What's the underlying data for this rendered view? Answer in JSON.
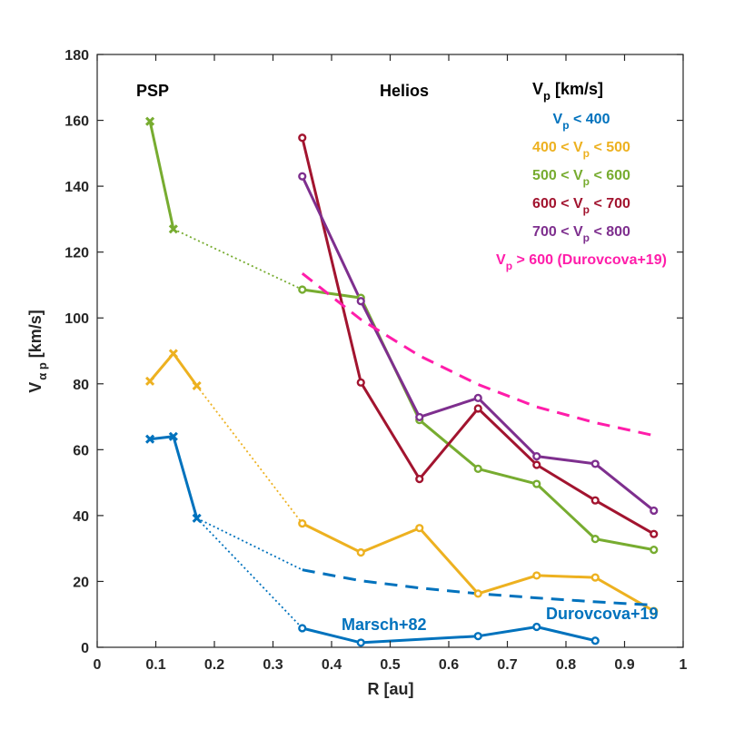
{
  "chart_data": {
    "type": "line",
    "title": "",
    "xlabel": "R [au]",
    "ylabel": "V_{αp} [km/s]",
    "xlim": [
      0,
      1
    ],
    "ylim": [
      0,
      180
    ],
    "xticks": [
      0,
      0.1,
      0.2,
      0.3,
      0.4,
      0.5,
      0.6,
      0.7,
      0.8,
      0.9,
      1
    ],
    "xtick_labels": [
      "0",
      "0.1",
      "0.2",
      "0.3",
      "0.4",
      "0.5",
      "0.6",
      "0.7",
      "0.8",
      "0.9",
      "1"
    ],
    "yticks": [
      0,
      20,
      40,
      60,
      80,
      100,
      120,
      140,
      160,
      180
    ],
    "ytick_labels": [
      "0",
      "20",
      "40",
      "60",
      "80",
      "100",
      "120",
      "140",
      "160",
      "180"
    ],
    "grid": false,
    "legend_title": "V_p [km/s]",
    "annotations": {
      "psp": "PSP",
      "helios": "Helios",
      "marsch": "Marsch+82",
      "durovcova": "Durovcova+19"
    },
    "series": [
      {
        "name": "V_p < 400",
        "legend": [
          "V",
          "p",
          " < 400"
        ],
        "color": "#0072BD",
        "psp": {
          "x": [
            0.09,
            0.13,
            0.17
          ],
          "y": [
            63.2,
            64.0,
            39.2
          ]
        },
        "helios": {
          "x": [
            0.35,
            0.45,
            0.65,
            0.75,
            0.85
          ],
          "y": [
            5.8,
            1.4,
            3.4,
            6.2,
            2.0
          ]
        },
        "link": {
          "from": [
            0.17,
            39.2
          ],
          "to": [
            0.35,
            5.8
          ]
        }
      },
      {
        "name": "400 < V_p < 500",
        "legend": [
          "400 < V",
          "p",
          " < 500"
        ],
        "color": "#EDB120",
        "psp": {
          "x": [
            0.09,
            0.13,
            0.17
          ],
          "y": [
            80.8,
            89.2,
            79.4
          ]
        },
        "helios": {
          "x": [
            0.35,
            0.45,
            0.55,
            0.65,
            0.75,
            0.85,
            0.95
          ],
          "y": [
            37.6,
            28.8,
            36.2,
            16.3,
            21.8,
            21.2,
            11.0
          ]
        },
        "link": {
          "from": [
            0.17,
            79.4
          ],
          "to": [
            0.35,
            37.6
          ]
        }
      },
      {
        "name": "500 < V_p < 600",
        "legend": [
          "500 < V",
          "p",
          " < 600"
        ],
        "color": "#77AC30",
        "psp": {
          "x": [
            0.09,
            0.13
          ],
          "y": [
            159.7,
            127.0
          ]
        },
        "helios": {
          "x": [
            0.35,
            0.45,
            0.55,
            0.65,
            0.75,
            0.85,
            0.95
          ],
          "y": [
            108.6,
            106.1,
            69.0,
            54.2,
            49.6,
            32.9,
            29.6
          ]
        },
        "link": {
          "from": [
            0.13,
            127.0
          ],
          "to": [
            0.35,
            108.6
          ]
        }
      },
      {
        "name": "600 < V_p < 700",
        "legend": [
          "600 < V",
          "p",
          " < 700"
        ],
        "color": "#A2142F",
        "helios": {
          "x": [
            0.35,
            0.45,
            0.55,
            0.65,
            0.75,
            0.85,
            0.95
          ],
          "y": [
            154.7,
            80.4,
            51.1,
            72.5,
            55.4,
            44.6,
            34.4
          ]
        }
      },
      {
        "name": "700 < V_p < 800",
        "legend": [
          "700 < V",
          "p",
          " < 800"
        ],
        "color": "#7E2F8E",
        "helios": {
          "x": [
            0.35,
            0.45,
            0.55,
            0.65,
            0.75,
            0.85,
            0.95
          ],
          "y": [
            143.0,
            105.1,
            69.9,
            75.7,
            58.0,
            55.7,
            41.5
          ]
        }
      },
      {
        "name": "V_p > 600 (Durovcova+19)",
        "legend": [
          "V",
          "p",
          " > 600 (Durovcova+19)"
        ],
        "color": "#FF1DAA",
        "style": "dashed",
        "curve": {
          "x": [
            0.35,
            0.45,
            0.55,
            0.65,
            0.75,
            0.85,
            0.95
          ],
          "y": [
            113.5,
            99.5,
            88.5,
            79.8,
            73.0,
            68.2,
            64.3
          ]
        }
      },
      {
        "name": "V_p < 400 (Durovcova+19)",
        "legend": null,
        "color": "#0072BD",
        "style": "dashed",
        "curve": {
          "x": [
            0.35,
            0.45,
            0.55,
            0.65,
            0.75,
            0.85,
            0.95
          ],
          "y": [
            23.5,
            20.2,
            18.0,
            16.3,
            15.0,
            13.8,
            12.8
          ]
        },
        "link": {
          "from": [
            0.17,
            39.2
          ],
          "to": [
            0.35,
            23.5
          ]
        }
      }
    ]
  }
}
